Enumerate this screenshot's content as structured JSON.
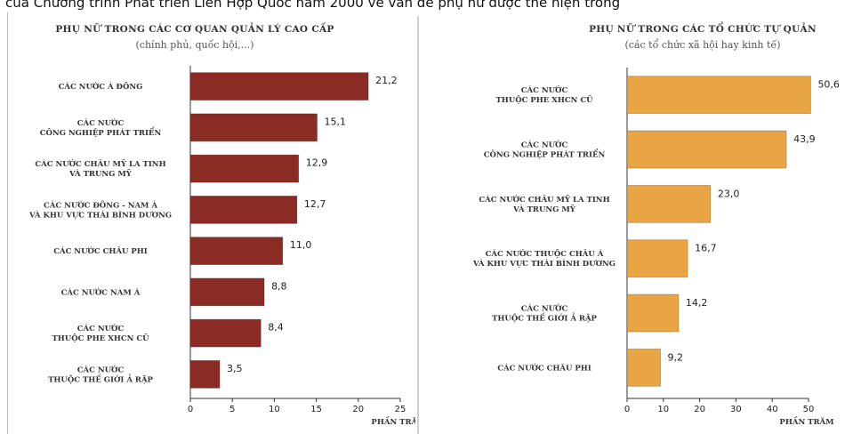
{
  "caption": "của Chương trình Phát triển Liên Hợp Quốc năm 2000 về vấn đề phụ nữ được thể hiện trong",
  "chart_data": [
    {
      "type": "bar",
      "orientation": "horizontal",
      "title": "PHỤ NỮ TRONG CÁC CƠ QUAN QUẢN LÝ CAO CẤP",
      "subtitle": "(chính phủ, quốc hội,...)",
      "xlabel": "PHẦN TRĂM",
      "xlim": [
        0,
        25
      ],
      "xticks": [
        "0",
        "5",
        "10",
        "15",
        "20",
        "25"
      ],
      "bar_color": "#8a2b24",
      "categories": [
        [
          "CÁC NƯỚC Á ĐÔNG"
        ],
        [
          "CÁC NƯỚC",
          "CÔNG NGHIỆP PHÁT TRIỂN"
        ],
        [
          "CÁC NƯỚC CHÂU MỸ LA TINH",
          "VÀ TRUNG MỸ"
        ],
        [
          "CÁC NƯỚC ĐÔNG - NAM Á",
          "VÀ KHU VỰC THÁI BÌNH DƯƠNG"
        ],
        [
          "CÁC NƯỚC CHÂU PHI"
        ],
        [
          "CÁC NƯỚC NAM Á"
        ],
        [
          "CÁC NƯỚC",
          "THUỘC PHE XHCN CŨ"
        ],
        [
          "CÁC NƯỚC",
          "THUỘC THẾ GIỚI Ả RẬP"
        ]
      ],
      "values": [
        21.2,
        15.1,
        12.9,
        12.7,
        11.0,
        8.8,
        8.4,
        3.5
      ],
      "value_labels": [
        "21,2",
        "15,1",
        "12,9",
        "12,7",
        "11,0",
        "8,8",
        "8,4",
        "3,5"
      ]
    },
    {
      "type": "bar",
      "orientation": "horizontal",
      "title": "PHỤ NỮ TRONG CÁC TỔ CHỨC TỰ QUẢN",
      "subtitle": "(các tổ chức xã hội hay kinh tế)",
      "xlabel": "PHẦN TRĂM",
      "xlim": [
        0,
        50
      ],
      "xticks": [
        "0",
        "10",
        "20",
        "30",
        "40",
        "50"
      ],
      "bar_color": "#e9a443",
      "categories": [
        [
          "CÁC NƯỚC",
          "THUỘC PHE XHCN CŨ"
        ],
        [
          "CÁC NƯỚC",
          "CÔNG NGHIỆP PHÁT TRIỂN"
        ],
        [
          "CÁC NƯỚC CHÂU MỸ LA TINH",
          "VÀ TRUNG MỸ"
        ],
        [
          "CÁC NƯỚC THUỘC CHÂU Á",
          "VÀ KHU VỰC THÁI BÌNH DƯƠNG"
        ],
        [
          "CÁC NƯỚC",
          "THUỘC THẾ GIỚI Ả RẬP"
        ],
        [
          "CÁC NƯỚC CHÂU PHI"
        ]
      ],
      "values": [
        50.6,
        43.9,
        23.0,
        16.7,
        14.2,
        9.2
      ],
      "value_labels": [
        "50,6",
        "43,9",
        "23,0",
        "16,7",
        "14,2",
        "9,2"
      ]
    }
  ]
}
